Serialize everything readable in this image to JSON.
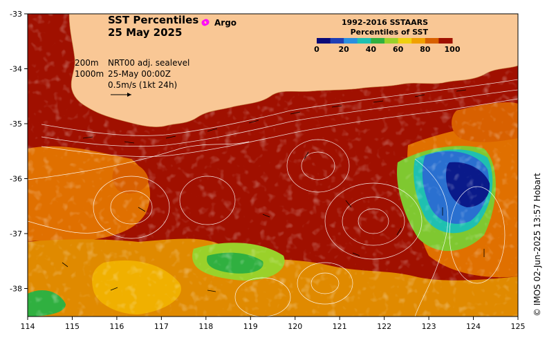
{
  "map": {
    "title_line1": "SST Percentiles",
    "title_line2": "25 May 2025",
    "argo_label": "Argo",
    "contour_depth_1": "200m",
    "contour_depth_2": "1000m",
    "sealevel_label": "NRT00 adj. sealevel",
    "time_label": "25-May 00:00Z",
    "scale_label": "0.5m/s (1kt 24h)",
    "credit": "© IMOS 02-Jun-2025 13:57 Hobart",
    "land_color": "#f9c795",
    "argo_color": "#ff00ff",
    "x_ticks": [
      "114",
      "115",
      "116",
      "117",
      "118",
      "119",
      "120",
      "121",
      "122",
      "123",
      "124",
      "125"
    ],
    "y_ticks": [
      "-33",
      "-34",
      "-35",
      "-36",
      "-37",
      "-38"
    ]
  },
  "legend": {
    "title_line1": "1992-2016 SSTAARS",
    "title_line2": "Percentiles of SST",
    "tick_labels": [
      "0",
      "20",
      "40",
      "60",
      "80",
      "100"
    ],
    "colors": [
      "#0a0a78",
      "#1f3fb5",
      "#2a8fe0",
      "#1fc0b0",
      "#30b040",
      "#9ad12a",
      "#f0d010",
      "#f0a000",
      "#d86000",
      "#a01000"
    ]
  }
}
